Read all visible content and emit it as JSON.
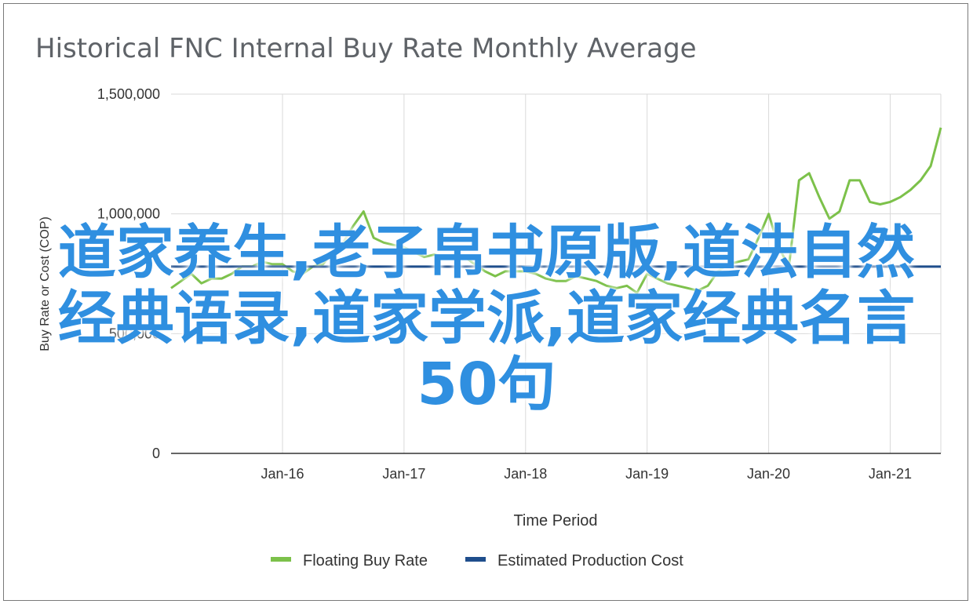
{
  "chart_data": {
    "type": "line",
    "title": "Historical FNC Internal Buy Rate Monthly Average",
    "xlabel": "Time Period",
    "ylabel": "Buy Rate or Cost (COP)",
    "ylim": [
      0,
      1500000
    ],
    "yticks": [
      {
        "value": 0,
        "label": "0"
      },
      {
        "value": 500000,
        "label": "500,000"
      },
      {
        "value": 1000000,
        "label": "1,000,000"
      },
      {
        "value": 1500000,
        "label": "1,500,000"
      }
    ],
    "x_range": [
      "2015-02",
      "2021-06"
    ],
    "xticks": [
      {
        "date": "2016-01",
        "label": "Jan-16"
      },
      {
        "date": "2017-01",
        "label": "Jan-17"
      },
      {
        "date": "2018-01",
        "label": "Jan-18"
      },
      {
        "date": "2019-01",
        "label": "Jan-19"
      },
      {
        "date": "2020-01",
        "label": "Jan-20"
      },
      {
        "date": "2021-01",
        "label": "Jan-21"
      }
    ],
    "grid": true,
    "legend_position": "bottom",
    "series": [
      {
        "name": "Floating Buy Rate",
        "color": "#7cc14a",
        "dates": [
          "2015-02",
          "2015-03",
          "2015-04",
          "2015-05",
          "2015-06",
          "2015-07",
          "2015-08",
          "2015-09",
          "2015-10",
          "2015-11",
          "2015-12",
          "2016-01",
          "2016-02",
          "2016-03",
          "2016-04",
          "2016-05",
          "2016-06",
          "2016-07",
          "2016-08",
          "2016-09",
          "2016-10",
          "2016-11",
          "2016-12",
          "2017-01",
          "2017-02",
          "2017-03",
          "2017-04",
          "2017-05",
          "2017-06",
          "2017-07",
          "2017-08",
          "2017-09",
          "2017-10",
          "2017-11",
          "2017-12",
          "2018-01",
          "2018-02",
          "2018-03",
          "2018-04",
          "2018-05",
          "2018-06",
          "2018-07",
          "2018-08",
          "2018-09",
          "2018-10",
          "2018-11",
          "2018-12",
          "2019-01",
          "2019-02",
          "2019-03",
          "2019-04",
          "2019-05",
          "2019-06",
          "2019-07",
          "2019-08",
          "2019-09",
          "2019-10",
          "2019-11",
          "2019-12",
          "2020-01",
          "2020-02",
          "2020-03",
          "2020-04",
          "2020-05",
          "2020-06",
          "2020-07",
          "2020-08",
          "2020-09",
          "2020-10",
          "2020-11",
          "2020-12",
          "2021-01",
          "2021-02",
          "2021-03",
          "2021-04",
          "2021-05",
          "2021-06"
        ],
        "values": [
          690000,
          720000,
          750000,
          710000,
          730000,
          730000,
          750000,
          780000,
          780000,
          800000,
          790000,
          790000,
          760000,
          750000,
          780000,
          790000,
          840000,
          880000,
          950000,
          1010000,
          900000,
          880000,
          870000,
          860000,
          840000,
          820000,
          830000,
          820000,
          830000,
          820000,
          790000,
          760000,
          740000,
          760000,
          760000,
          760000,
          750000,
          730000,
          720000,
          720000,
          740000,
          730000,
          720000,
          700000,
          690000,
          700000,
          670000,
          750000,
          730000,
          710000,
          700000,
          690000,
          680000,
          700000,
          760000,
          790000,
          800000,
          810000,
          900000,
          1000000,
          860000,
          780000,
          1140000,
          1170000,
          1070000,
          980000,
          1010000,
          1140000,
          1140000,
          1050000,
          1040000,
          1050000,
          1070000,
          1100000,
          1140000,
          1200000,
          1360000
        ]
      },
      {
        "name": "Estimated Production Cost",
        "color": "#1f4e8c",
        "values": [
          780000
        ]
      }
    ]
  },
  "overlay": {
    "lines": [
      "道家养生,老子帛书原版,道法自然",
      "经典语录,道家学派,道家经典名言",
      "50句"
    ],
    "color": "#2f8fe0"
  }
}
